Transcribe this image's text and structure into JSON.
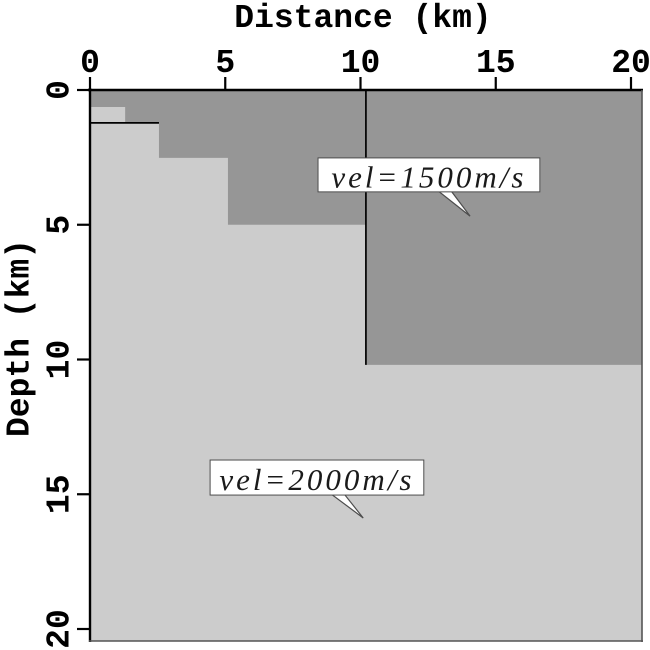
{
  "chart_data": {
    "type": "heatmap",
    "title": "",
    "xlabel": "Distance (km)",
    "ylabel": "Depth (km)",
    "x_axis_position": "top",
    "y_axis_direction": "depth-down",
    "xlim": [
      0,
      20.4
    ],
    "ylim": [
      0,
      20.4
    ],
    "x_ticks": [
      0,
      5,
      10,
      15,
      20
    ],
    "y_ticks": [
      0,
      5,
      10,
      15,
      20
    ],
    "grid": false,
    "legend": "none",
    "background_color": "#ffffff",
    "frame_color_dark": "#000000",
    "frame_color_light": "#555555",
    "regions": [
      {
        "id": "vel1500",
        "label": "vel=1500m/s",
        "velocity_m_per_s": 1500,
        "color": "#969696",
        "extent": "from surface down to staircase interface"
      },
      {
        "id": "vel2000",
        "label": "vel=2000m/s",
        "velocity_m_per_s": 2000,
        "color": "#cccccc",
        "extent": "below staircase interface"
      }
    ],
    "interface_staircase": [
      {
        "x_from": 0.0,
        "x_to": 1.3,
        "depth": 0.63
      },
      {
        "x_from": 1.3,
        "x_to": 2.55,
        "depth": 1.22
      },
      {
        "x_from": 2.55,
        "x_to": 5.1,
        "depth": 2.52
      },
      {
        "x_from": 5.1,
        "x_to": 10.2,
        "depth": 5.0
      },
      {
        "x_from": 10.2,
        "x_to": 20.4,
        "depth": 10.2
      }
    ],
    "model_edges": [
      {
        "orientation": "horizontal",
        "depth": 1.22,
        "x_from": 0.0,
        "x_to": 2.55
      },
      {
        "orientation": "vertical",
        "x": 10.2,
        "depth_from": 0.0,
        "depth_to": 10.2
      }
    ],
    "annotations": [
      {
        "text": "vel=1500m/s",
        "box": {
          "x": 8.43,
          "y": 2.52,
          "w": 8.2,
          "h": 1.26
        },
        "tip": {
          "x": 14.05,
          "y": 4.68
        }
      },
      {
        "text": "vel=2000m/s",
        "box": {
          "x": 4.44,
          "y": 13.73,
          "w": 7.9,
          "h": 1.3
        },
        "tip": {
          "x": 10.1,
          "y": 15.88
        }
      }
    ]
  }
}
